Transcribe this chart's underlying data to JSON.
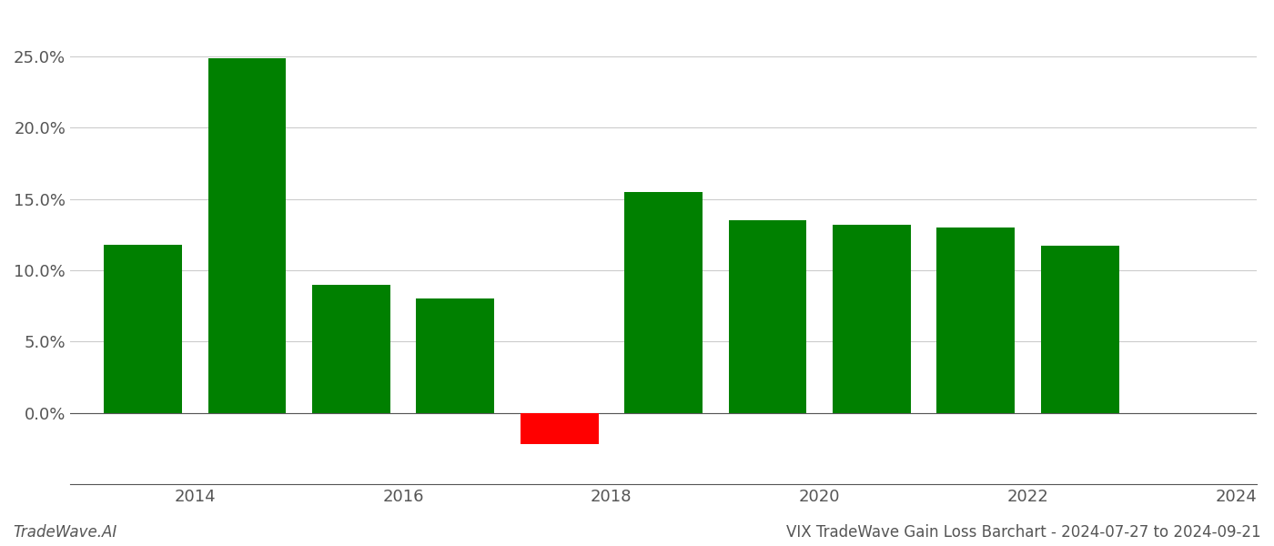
{
  "years": [
    2013.5,
    2014.5,
    2015.5,
    2016.5,
    2017.5,
    2018.5,
    2019.5,
    2020.5,
    2021.5,
    2022.5
  ],
  "values": [
    0.118,
    0.249,
    0.09,
    0.08,
    -0.022,
    0.155,
    0.135,
    0.132,
    0.13,
    0.117
  ],
  "bar_colors": [
    "#008000",
    "#008000",
    "#008000",
    "#008000",
    "#ff0000",
    "#008000",
    "#008000",
    "#008000",
    "#008000",
    "#008000"
  ],
  "title": "VIX TradeWave Gain Loss Barchart - 2024-07-27 to 2024-09-21",
  "watermark": "TradeWave.AI",
  "ylim": [
    -0.05,
    0.28
  ],
  "yticks": [
    0.0,
    0.05,
    0.1,
    0.15,
    0.2,
    0.25
  ],
  "xtick_positions": [
    2014,
    2016,
    2018,
    2020,
    2022,
    2024
  ],
  "xtick_labels": [
    "2014",
    "2016",
    "2018",
    "2020",
    "2022",
    "2024"
  ],
  "xlim": [
    2012.8,
    2024.2
  ],
  "background_color": "#ffffff",
  "grid_color": "#cccccc",
  "bar_width": 0.75
}
